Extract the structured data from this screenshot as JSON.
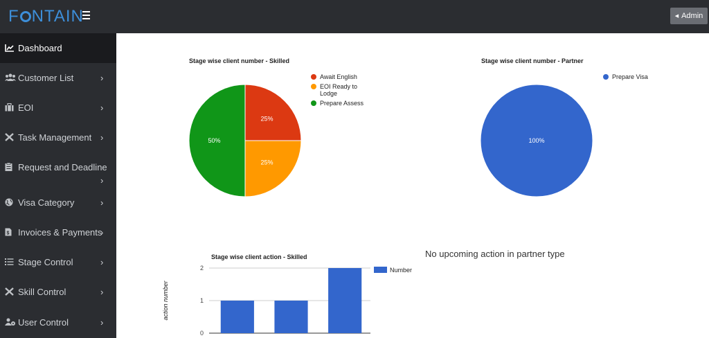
{
  "header": {
    "logo_text": "FOUNTAIN",
    "logo_pre": "F",
    "logo_post": "NTAIN",
    "admin_label": "Admin"
  },
  "sidebar": {
    "items": [
      {
        "label": "Dashboard",
        "icon": "area-chart-icon",
        "active": true
      },
      {
        "label": "Customer List",
        "icon": "users-icon"
      },
      {
        "label": "EOI",
        "icon": "briefcase-icon"
      },
      {
        "label": "Task Management",
        "icon": "tools-icon"
      },
      {
        "label": "Request and Deadline",
        "icon": "clipboard-icon"
      },
      {
        "label": "Visa Category",
        "icon": "globe-icon"
      },
      {
        "label": "Invoices & Payments",
        "icon": "invoice-icon"
      },
      {
        "label": "Stage Control",
        "icon": "list-icon"
      },
      {
        "label": "Skill Control",
        "icon": "tools-icon"
      },
      {
        "label": "User Control",
        "icon": "users-gear-icon"
      }
    ]
  },
  "charts": {
    "skilled_pie_title": "Stage wise client number - Skilled",
    "partner_pie_title": "Stage wise client number - Partner",
    "skilled_action_title": "Stage wise client action - Skilled",
    "partner_action_note": "No upcoming action in partner type"
  },
  "chart_data": [
    {
      "type": "pie",
      "title": "Stage wise client number - Skilled",
      "slices": [
        {
          "label": "Await English",
          "value": 25,
          "display": "25%",
          "color": "#dc3912"
        },
        {
          "label": "EOI Ready to Lodge",
          "value": 25,
          "display": "25%",
          "color": "#ff9900"
        },
        {
          "label": "Prepare Assess",
          "value": 50,
          "display": "50%",
          "color": "#109618"
        }
      ],
      "legend_lines": [
        [
          "Await English"
        ],
        [
          "EOI Ready to",
          "Lodge"
        ],
        [
          "Prepare Assess"
        ]
      ],
      "legend": "right"
    },
    {
      "type": "pie",
      "title": "Stage wise client number - Partner",
      "slices": [
        {
          "label": "Prepare Visa",
          "value": 100,
          "display": "100%",
          "color": "#3366cc"
        }
      ],
      "legend": "right"
    },
    {
      "type": "bar",
      "title": "Stage wise client action - Skilled",
      "ylabel": "action number",
      "ylim": [
        0,
        2
      ],
      "yticks": [
        "0",
        "1",
        "2"
      ],
      "series": [
        {
          "name": "Number",
          "values": [
            1,
            1,
            2
          ],
          "color": "#3366cc"
        }
      ],
      "legend": "right"
    }
  ]
}
